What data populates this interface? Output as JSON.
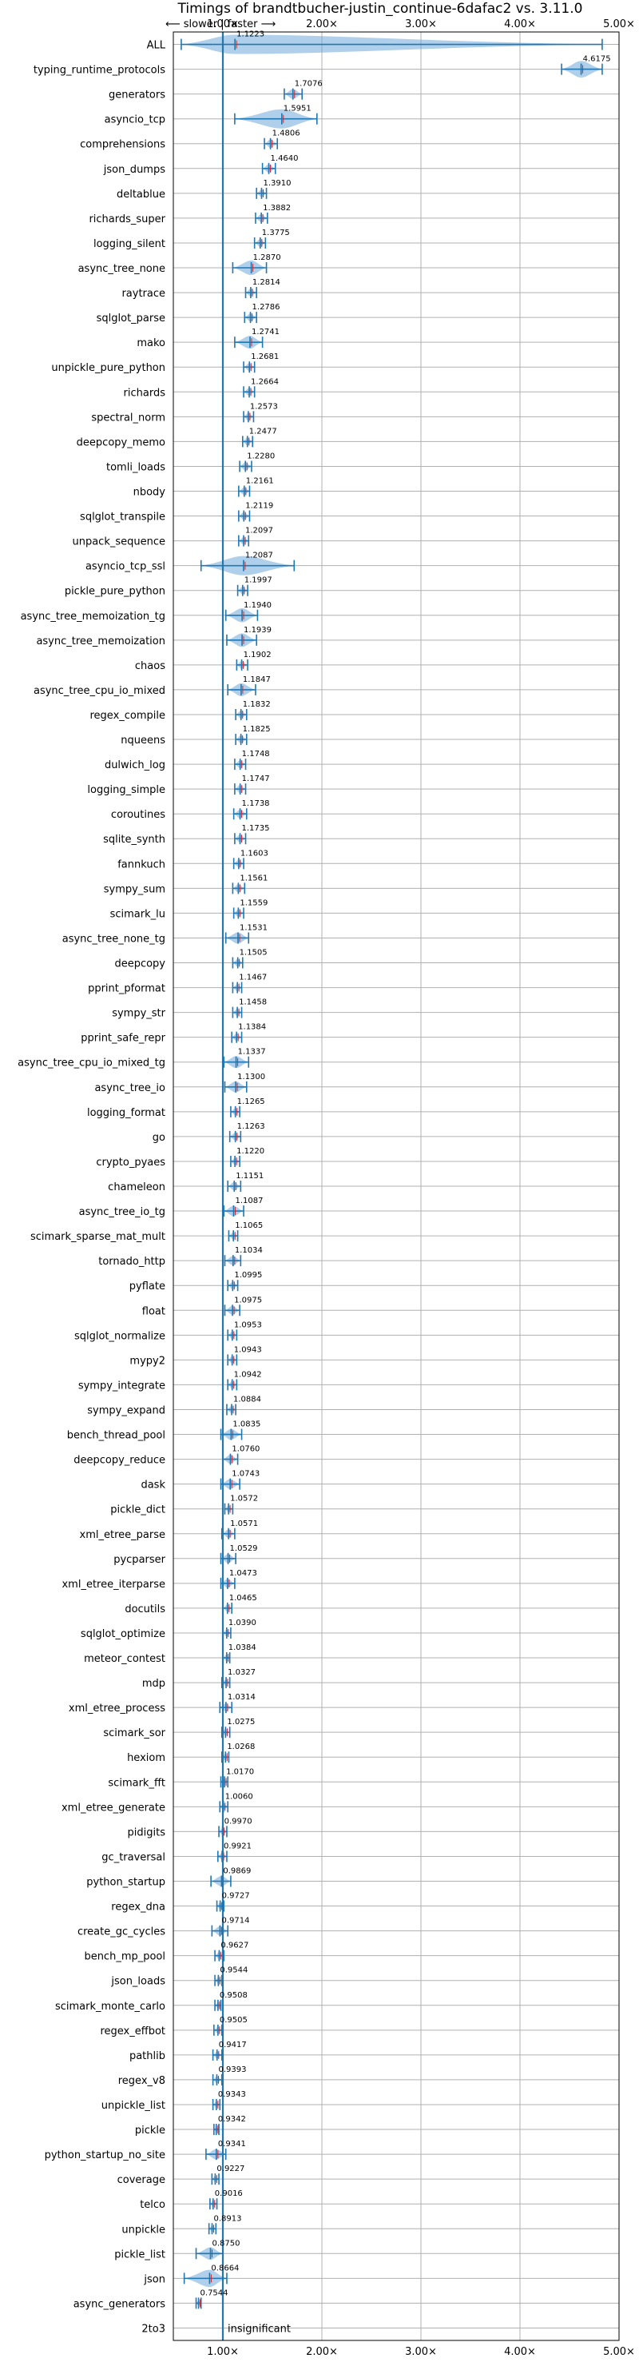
{
  "chart_data": {
    "type": "violin",
    "title": "Timings of brandtbucher-justin_continue-6dafac2 vs. 3.11.0",
    "direction_note": "⟵ slower | faster ⟶",
    "xlim": [
      0.5,
      5.0
    ],
    "x_ticks": [
      1,
      2,
      3,
      4,
      5
    ],
    "x_tick_labels": [
      "1.00×",
      "2.00×",
      "3.00×",
      "4.00×",
      "5.00×"
    ],
    "grid": true,
    "reference_line": 1.0,
    "colors": {
      "violin": "#6ea8d8",
      "line": "#1f77b4",
      "median": "#d62728",
      "reference": "#1f77b4"
    },
    "categories": [
      "ALL",
      "typing_runtime_protocols",
      "generators",
      "asyncio_tcp",
      "comprehensions",
      "json_dumps",
      "deltablue",
      "richards_super",
      "logging_silent",
      "async_tree_none",
      "raytrace",
      "sqlglot_parse",
      "mako",
      "unpickle_pure_python",
      "richards",
      "spectral_norm",
      "deepcopy_memo",
      "tomli_loads",
      "nbody",
      "sqlglot_transpile",
      "unpack_sequence",
      "asyncio_tcp_ssl",
      "pickle_pure_python",
      "async_tree_memoization_tg",
      "async_tree_memoization",
      "chaos",
      "async_tree_cpu_io_mixed",
      "regex_compile",
      "nqueens",
      "dulwich_log",
      "logging_simple",
      "coroutines",
      "sqlite_synth",
      "fannkuch",
      "sympy_sum",
      "scimark_lu",
      "async_tree_none_tg",
      "deepcopy",
      "pprint_pformat",
      "sympy_str",
      "pprint_safe_repr",
      "async_tree_cpu_io_mixed_tg",
      "async_tree_io",
      "logging_format",
      "go",
      "crypto_pyaes",
      "chameleon",
      "async_tree_io_tg",
      "scimark_sparse_mat_mult",
      "tornado_http",
      "pyflate",
      "float",
      "sqlglot_normalize",
      "mypy2",
      "sympy_integrate",
      "sympy_expand",
      "bench_thread_pool",
      "deepcopy_reduce",
      "dask",
      "pickle_dict",
      "xml_etree_parse",
      "pycparser",
      "xml_etree_iterparse",
      "docutils",
      "sqlglot_optimize",
      "meteor_contest",
      "mdp",
      "xml_etree_process",
      "scimark_sor",
      "hexiom",
      "scimark_fft",
      "xml_etree_generate",
      "pidigits",
      "gc_traversal",
      "python_startup",
      "regex_dna",
      "create_gc_cycles",
      "bench_mp_pool",
      "json_loads",
      "scimark_monte_carlo",
      "regex_effbot",
      "pathlib",
      "regex_v8",
      "unpickle_list",
      "pickle",
      "python_startup_no_site",
      "coverage",
      "telco",
      "unpickle",
      "pickle_list",
      "json",
      "async_generators",
      "2to3"
    ],
    "values": [
      1.1223,
      4.6175,
      1.7076,
      1.5951,
      1.4806,
      1.464,
      1.391,
      1.3882,
      1.3775,
      1.287,
      1.2814,
      1.2786,
      1.2741,
      1.2681,
      1.2664,
      1.2573,
      1.2477,
      1.228,
      1.2161,
      1.2119,
      1.2097,
      1.2087,
      1.1997,
      1.194,
      1.1939,
      1.1902,
      1.1847,
      1.1832,
      1.1825,
      1.1748,
      1.1747,
      1.1738,
      1.1735,
      1.1603,
      1.1561,
      1.1559,
      1.1531,
      1.1505,
      1.1467,
      1.1458,
      1.1384,
      1.1337,
      1.13,
      1.1265,
      1.1263,
      1.122,
      1.1151,
      1.1087,
      1.1065,
      1.1034,
      1.0995,
      1.0975,
      1.0953,
      1.0943,
      1.0942,
      1.0884,
      1.0835,
      1.076,
      1.0743,
      1.0572,
      1.0571,
      1.0529,
      1.0473,
      1.0465,
      1.039,
      1.0384,
      1.0327,
      1.0314,
      1.0275,
      1.0268,
      1.017,
      1.006,
      0.997,
      0.9921,
      0.9869,
      0.9727,
      0.9714,
      0.9627,
      0.9544,
      0.9508,
      0.9505,
      0.9417,
      0.9393,
      0.9343,
      0.9342,
      0.9341,
      0.9227,
      0.9016,
      0.8913,
      0.875,
      0.8664,
      0.7544,
      null
    ],
    "value_labels": [
      "1.1223",
      "4.6175",
      "1.7076",
      "1.5951",
      "1.4806",
      "1.4640",
      "1.3910",
      "1.3882",
      "1.3775",
      "1.2870",
      "1.2814",
      "1.2786",
      "1.2741",
      "1.2681",
      "1.2664",
      "1.2573",
      "1.2477",
      "1.2280",
      "1.2161",
      "1.2119",
      "1.2097",
      "1.2087",
      "1.1997",
      "1.1940",
      "1.1939",
      "1.1902",
      "1.1847",
      "1.1832",
      "1.1825",
      "1.1748",
      "1.1747",
      "1.1738",
      "1.1735",
      "1.1603",
      "1.1561",
      "1.1559",
      "1.1531",
      "1.1505",
      "1.1467",
      "1.1458",
      "1.1384",
      "1.1337",
      "1.1300",
      "1.1265",
      "1.1263",
      "1.1220",
      "1.1151",
      "1.1087",
      "1.1065",
      "1.1034",
      "1.0995",
      "1.0975",
      "1.0953",
      "1.0943",
      "1.0942",
      "1.0884",
      "1.0835",
      "1.0760",
      "1.0743",
      "1.0572",
      "1.0571",
      "1.0529",
      "1.0473",
      "1.0465",
      "1.0390",
      "1.0384",
      "1.0327",
      "1.0314",
      "1.0275",
      "1.0268",
      "1.0170",
      "1.0060",
      "0.9970",
      "0.9921",
      "0.9869",
      "0.9727",
      "0.9714",
      "0.9627",
      "0.9544",
      "0.9508",
      "0.9505",
      "0.9417",
      "0.9393",
      "0.9343",
      "0.9342",
      "0.9341",
      "0.9227",
      "0.9016",
      "0.8913",
      "0.8750",
      "0.8664",
      "0.7544",
      "insignificant"
    ],
    "ranges": [
      [
        0.58,
        4.83
      ],
      [
        4.42,
        4.83
      ],
      [
        1.62,
        1.8
      ],
      [
        1.12,
        1.95
      ],
      [
        1.42,
        1.55
      ],
      [
        1.4,
        1.53
      ],
      [
        1.34,
        1.44
      ],
      [
        1.33,
        1.45
      ],
      [
        1.32,
        1.43
      ],
      [
        1.1,
        1.44
      ],
      [
        1.23,
        1.34
      ],
      [
        1.22,
        1.34
      ],
      [
        1.12,
        1.4
      ],
      [
        1.21,
        1.32
      ],
      [
        1.21,
        1.32
      ],
      [
        1.21,
        1.31
      ],
      [
        1.2,
        1.3
      ],
      [
        1.17,
        1.29
      ],
      [
        1.16,
        1.27
      ],
      [
        1.16,
        1.27
      ],
      [
        1.16,
        1.26
      ],
      [
        0.78,
        1.72
      ],
      [
        1.15,
        1.25
      ],
      [
        1.03,
        1.35
      ],
      [
        1.04,
        1.34
      ],
      [
        1.14,
        1.25
      ],
      [
        1.05,
        1.33
      ],
      [
        1.13,
        1.24
      ],
      [
        1.13,
        1.24
      ],
      [
        1.12,
        1.23
      ],
      [
        1.12,
        1.23
      ],
      [
        1.11,
        1.24
      ],
      [
        1.12,
        1.23
      ],
      [
        1.11,
        1.21
      ],
      [
        1.1,
        1.22
      ],
      [
        1.11,
        1.21
      ],
      [
        1.03,
        1.26
      ],
      [
        1.1,
        1.2
      ],
      [
        1.1,
        1.19
      ],
      [
        1.1,
        1.19
      ],
      [
        1.09,
        1.19
      ],
      [
        1.01,
        1.26
      ],
      [
        1.02,
        1.24
      ],
      [
        1.08,
        1.17
      ],
      [
        1.07,
        1.18
      ],
      [
        1.08,
        1.17
      ],
      [
        1.05,
        1.18
      ],
      [
        1.01,
        1.21
      ],
      [
        1.06,
        1.15
      ],
      [
        1.02,
        1.18
      ],
      [
        1.05,
        1.15
      ],
      [
        1.02,
        1.17
      ],
      [
        1.05,
        1.14
      ],
      [
        1.05,
        1.14
      ],
      [
        1.05,
        1.14
      ],
      [
        1.04,
        1.13
      ],
      [
        0.98,
        1.19
      ],
      [
        1.0,
        1.15
      ],
      [
        0.98,
        1.17
      ],
      [
        1.02,
        1.1
      ],
      [
        0.99,
        1.12
      ],
      [
        0.98,
        1.13
      ],
      [
        0.98,
        1.12
      ],
      [
        1.0,
        1.09
      ],
      [
        1.0,
        1.08
      ],
      [
        1.0,
        1.07
      ],
      [
        0.99,
        1.07
      ],
      [
        0.97,
        1.09
      ],
      [
        0.99,
        1.07
      ],
      [
        0.99,
        1.06
      ],
      [
        0.98,
        1.05
      ],
      [
        0.97,
        1.05
      ],
      [
        0.96,
        1.04
      ],
      [
        0.95,
        1.04
      ],
      [
        0.88,
        1.08
      ],
      [
        0.94,
        1.01
      ],
      [
        0.89,
        1.05
      ],
      [
        0.92,
        1.01
      ],
      [
        0.92,
        0.99
      ],
      [
        0.92,
        0.98
      ],
      [
        0.91,
        0.99
      ],
      [
        0.9,
        0.99
      ],
      [
        0.9,
        0.99
      ],
      [
        0.9,
        0.97
      ],
      [
        0.91,
        0.96
      ],
      [
        0.83,
        1.03
      ],
      [
        0.89,
        0.96
      ],
      [
        0.87,
        0.94
      ],
      [
        0.86,
        0.93
      ],
      [
        0.73,
        1.0
      ],
      [
        0.61,
        1.04
      ],
      [
        0.73,
        0.78
      ],
      [
        null,
        null
      ]
    ]
  }
}
